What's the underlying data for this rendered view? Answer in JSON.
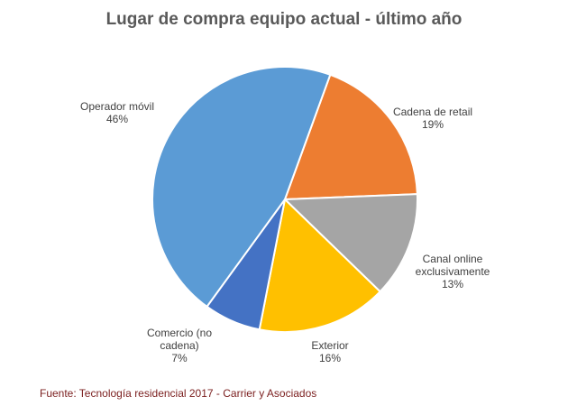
{
  "chart_data": {
    "type": "pie",
    "title": "Lugar de compra equipo actual - último año",
    "slices": [
      {
        "label": "Cadena de retail",
        "value": 19,
        "percent": "19%",
        "color": "#ED7D31"
      },
      {
        "label": "Canal online exclusivamente",
        "value": 13,
        "percent": "13%",
        "color": "#A5A5A5"
      },
      {
        "label": "Exterior",
        "value": 16,
        "percent": "16%",
        "color": "#FFC000"
      },
      {
        "label": "Comercio (no cadena)",
        "value": 7,
        "percent": "7%",
        "color": "#4472C4"
      },
      {
        "label": "Operador móvil",
        "value": 46,
        "percent": "46%",
        "color": "#5B9BD5"
      }
    ],
    "start_angle_deg": 20,
    "direction": "clockwise",
    "legend": "none",
    "data_labels": "outside"
  },
  "source_note": "Fuente: Tecnología residencial 2017 - Carrier y Asociados"
}
